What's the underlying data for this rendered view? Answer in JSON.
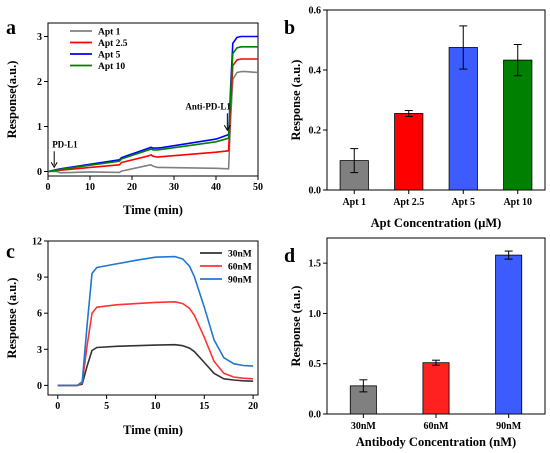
{
  "chart_data": [
    {
      "panel_label": "a",
      "type": "line",
      "xlabel": "Time (min)",
      "ylabel": "Response(a.u.)",
      "xlim": [
        0,
        50
      ],
      "ylim": [
        -0.1,
        3.3
      ],
      "xticks": [
        "0",
        "10",
        "20",
        "30",
        "40",
        "50"
      ],
      "yticks": [
        "0",
        "1",
        "2",
        "3"
      ],
      "annotations": [
        {
          "text": "PD-L1",
          "x": 1,
          "y": 0.05
        },
        {
          "text": "Anti-PD-L1",
          "x": 42.7,
          "y": 0.85
        }
      ],
      "legend_position": "top-left",
      "series": [
        {
          "name": "Apt 1",
          "color": "#808080",
          "x": [
            0,
            2,
            3,
            10,
            17,
            17.5,
            24,
            24.5,
            25,
            26,
            27,
            40,
            43,
            43.5,
            44,
            45,
            46,
            47,
            50
          ],
          "y": [
            0,
            0,
            -0.03,
            -0.01,
            -0.02,
            0.01,
            0.14,
            0.15,
            0.12,
            0.09,
            0.09,
            0.07,
            0.06,
            1.2,
            2.05,
            2.2,
            2.22,
            2.22,
            2.2
          ]
        },
        {
          "name": "Apt 2.5",
          "color": "#ff0000",
          "x": [
            0,
            2,
            3,
            10,
            17,
            17.5,
            24,
            24.5,
            25,
            26,
            27,
            40,
            43,
            43.5,
            44,
            45,
            46,
            47,
            50
          ],
          "y": [
            0,
            0.02,
            0.03,
            0.09,
            0.15,
            0.2,
            0.35,
            0.37,
            0.34,
            0.32,
            0.33,
            0.43,
            0.46,
            1.5,
            2.35,
            2.48,
            2.5,
            2.5,
            2.5
          ]
        },
        {
          "name": "Apt 5",
          "color": "#0000ff",
          "x": [
            0,
            2,
            3,
            10,
            17,
            17.5,
            24,
            24.5,
            25,
            26,
            27,
            40,
            43,
            43.5,
            44,
            45,
            46,
            47,
            50
          ],
          "y": [
            0,
            0.04,
            0.06,
            0.16,
            0.26,
            0.31,
            0.52,
            0.54,
            0.52,
            0.52,
            0.53,
            0.72,
            0.82,
            1.9,
            2.85,
            2.98,
            3,
            3,
            3
          ]
        },
        {
          "name": "Apt 10",
          "color": "#008000",
          "x": [
            0,
            2,
            3,
            10,
            17,
            17.5,
            24,
            24.5,
            25,
            26,
            27,
            40,
            43,
            43.5,
            44,
            45,
            46,
            47,
            50
          ],
          "y": [
            0,
            0.03,
            0.05,
            0.14,
            0.23,
            0.28,
            0.48,
            0.5,
            0.48,
            0.48,
            0.49,
            0.66,
            0.74,
            1.75,
            2.62,
            2.75,
            2.77,
            2.77,
            2.77
          ]
        }
      ]
    },
    {
      "panel_label": "b",
      "type": "bar",
      "xlabel": "Apt Concentration (μM)",
      "ylabel": "Response (a.u.)",
      "ylim": [
        0,
        0.6
      ],
      "yticks": [
        "0.0",
        "0.2",
        "0.4",
        "0.6"
      ],
      "categories": [
        "Apt 1",
        "Apt 2.5",
        "Apt 5",
        "Apt 10"
      ],
      "values": [
        0.098,
        0.255,
        0.475,
        0.433
      ],
      "errors": [
        0.04,
        0.01,
        0.072,
        0.052
      ],
      "colors": [
        "#808080",
        "#ff0000",
        "#3c5cff",
        "#008000"
      ]
    },
    {
      "panel_label": "c",
      "type": "line",
      "xlabel": "Time (min)",
      "ylabel": "Response (a.u.)",
      "xlim": [
        -1,
        20.5
      ],
      "ylim": [
        -0.8,
        12
      ],
      "xticks": [
        "0",
        "5",
        "10",
        "15",
        "20"
      ],
      "yticks": [
        "0",
        "3",
        "6",
        "9",
        "12"
      ],
      "legend_position": "top-right",
      "series": [
        {
          "name": "30nM",
          "color": "#333333",
          "x": [
            0,
            2,
            2.5,
            3,
            3.5,
            4,
            6,
            8,
            10,
            12,
            12.8,
            13.5,
            14,
            15,
            16,
            17,
            18,
            19,
            20
          ],
          "y": [
            0,
            0,
            0.1,
            1.6,
            2.9,
            3.15,
            3.25,
            3.3,
            3.35,
            3.38,
            3.3,
            3.1,
            2.8,
            1.9,
            1.0,
            0.55,
            0.45,
            0.38,
            0.35
          ]
        },
        {
          "name": "60nM",
          "color": "#ff3333",
          "x": [
            0,
            2,
            2.5,
            3,
            3.5,
            4,
            6,
            8,
            10,
            12,
            12.8,
            13.5,
            14,
            15,
            16,
            17,
            18,
            19,
            20
          ],
          "y": [
            0,
            0,
            0.2,
            3.3,
            6.0,
            6.5,
            6.7,
            6.8,
            6.9,
            6.95,
            6.8,
            6.4,
            5.8,
            4.0,
            2.0,
            1.0,
            0.7,
            0.6,
            0.55
          ]
        },
        {
          "name": "90nM",
          "color": "#1f77d4",
          "x": [
            0,
            2,
            2.5,
            3,
            3.5,
            4,
            6,
            8,
            10,
            12,
            12.8,
            13.5,
            14,
            15,
            16,
            17,
            18,
            19,
            20
          ],
          "y": [
            0,
            0,
            0.3,
            5.0,
            9.3,
            9.8,
            10.1,
            10.4,
            10.65,
            10.7,
            10.5,
            9.9,
            9.0,
            6.5,
            3.8,
            2.3,
            1.8,
            1.65,
            1.6
          ]
        }
      ]
    },
    {
      "panel_label": "d",
      "type": "bar",
      "xlabel": "Antibody Concentration (nM)",
      "ylabel": "Response (a.u.)",
      "ylim": [
        0,
        1.75
      ],
      "yticks": [
        "0.0",
        "0.5",
        "1.0",
        "1.5"
      ],
      "categories": [
        "30nM",
        "60nM",
        "90nM"
      ],
      "values": [
        0.28,
        0.51,
        1.58
      ],
      "errors": [
        0.06,
        0.025,
        0.04
      ],
      "colors": [
        "#808080",
        "#ff2020",
        "#3c5cff"
      ]
    }
  ]
}
